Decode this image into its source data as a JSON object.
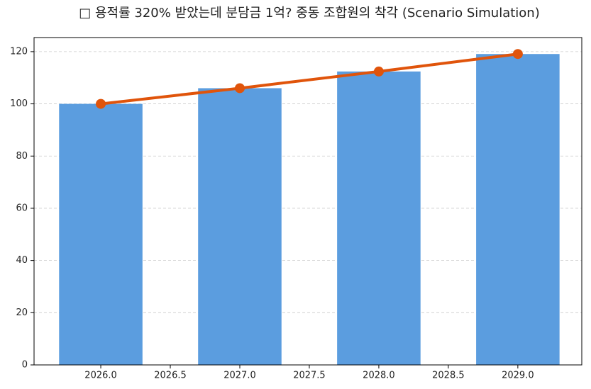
{
  "chart_data": {
    "type": "combo",
    "title": "□ 용적률 320% 받았는데 분담금 1억? 중동 조합원의 착각 (Scenario Simulation)",
    "x": [
      2026,
      2027,
      2028,
      2029
    ],
    "series": [
      {
        "type": "bar",
        "color": "#5b9ddf",
        "values": [
          100,
          106,
          112.4,
          119.1
        ]
      },
      {
        "type": "line",
        "color": "#e0540b",
        "values": [
          100,
          106,
          112.4,
          119.1
        ]
      }
    ],
    "xlim": [
      2025.52,
      2029.46
    ],
    "xticks": [
      {
        "value": 2026,
        "label": "2026.0"
      },
      {
        "value": 2026.5,
        "label": "2026.5"
      },
      {
        "value": 2027,
        "label": "2027.0"
      },
      {
        "value": 2027.5,
        "label": "2027.5"
      },
      {
        "value": 2028,
        "label": "2028.0"
      },
      {
        "value": 2028.5,
        "label": "2028.5"
      },
      {
        "value": 2029,
        "label": "2029.0"
      }
    ],
    "ylim": [
      0,
      125.4
    ],
    "yticks": [
      0,
      20,
      40,
      60,
      80,
      100,
      120
    ],
    "grid": true
  }
}
